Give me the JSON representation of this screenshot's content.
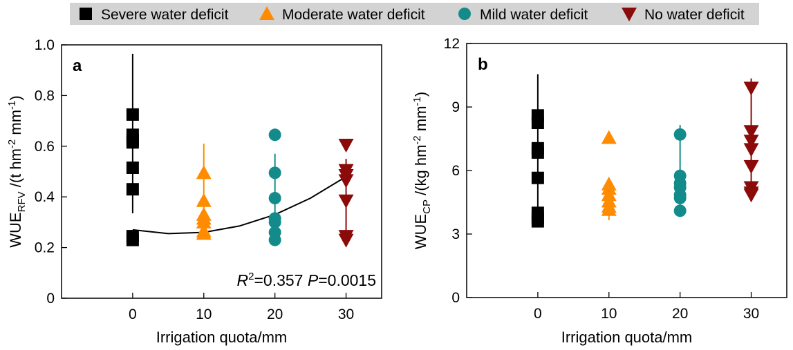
{
  "legend": {
    "items": [
      {
        "label": "Severe water deficit",
        "marker": "square",
        "color": "#000000"
      },
      {
        "label": "Moderate water deficit",
        "marker": "triangle-up",
        "color": "#ff8c00"
      },
      {
        "label": "Mild water deficit",
        "marker": "circle",
        "color": "#138b8b"
      },
      {
        "label": "No water deficit",
        "marker": "triangle-down",
        "color": "#8b0a0a"
      }
    ],
    "background": "#d3d3d3"
  },
  "chart_data": [
    {
      "type": "scatter",
      "panel_label": "a",
      "xlabel": "Irrigation quota/mm",
      "ylabel": {
        "main": "WUE",
        "sub": "RFV",
        "rest_before": " /(t hm",
        "sup1": "-2",
        "mid": " mm",
        "sup2": "-1",
        "rest_after": ")"
      },
      "xlim": [
        -10,
        35
      ],
      "ylim": [
        0,
        1.0
      ],
      "xticks": [
        0,
        10,
        20,
        30
      ],
      "yticks": [
        0,
        0.2,
        0.4,
        0.6,
        0.8,
        1.0
      ],
      "ytick_labels": [
        "0",
        "0.2",
        "0.4",
        "0.6",
        "0.8",
        "1.0"
      ],
      "annotation": {
        "r_label": "R",
        "r_sup": "2",
        "r_value": "=0.357 ",
        "p_label": "P",
        "p_value": "=0.0015"
      },
      "fit_curve": {
        "x": [
          0,
          5,
          10,
          15,
          20,
          25,
          30
        ],
        "y": [
          0.27,
          0.255,
          0.26,
          0.285,
          0.33,
          0.395,
          0.48
        ]
      },
      "series": [
        {
          "name": "Severe water deficit",
          "x": 0,
          "y": [
            0.725,
            0.645,
            0.625,
            0.615,
            0.515,
            0.43,
            0.245,
            0.23
          ],
          "err_low": 0.335,
          "err_high": 0.965
        },
        {
          "name": "Moderate water deficit",
          "x": 10,
          "y": [
            0.495,
            0.385,
            0.33,
            0.315,
            0.3,
            0.265,
            0.255
          ],
          "err_low": 0.245,
          "err_high": 0.61
        },
        {
          "name": "Mild water deficit",
          "x": 20,
          "y": [
            0.645,
            0.495,
            0.395,
            0.315,
            0.3,
            0.26,
            0.23
          ],
          "err_low": 0.22,
          "err_high": 0.57
        },
        {
          "name": "No water deficit",
          "x": 30,
          "y": [
            0.605,
            0.505,
            0.485,
            0.465,
            0.385,
            0.245,
            0.23
          ],
          "err_low": 0.22,
          "err_high": 0.55
        }
      ]
    },
    {
      "type": "scatter",
      "panel_label": "b",
      "xlabel": "Irrigation quota/mm",
      "ylabel": {
        "main": "WUE",
        "sub": "CP",
        "rest_before": " /(kg hm",
        "sup1": "-2",
        "mid": " mm",
        "sup2": "-1",
        "rest_after": ")"
      },
      "xlim": [
        -10,
        35
      ],
      "ylim": [
        0,
        12
      ],
      "xticks": [
        0,
        10,
        20,
        30
      ],
      "yticks": [
        0,
        3,
        6,
        9,
        12
      ],
      "ytick_labels": [
        "0",
        "3",
        "6",
        "9",
        "12"
      ],
      "series": [
        {
          "name": "Severe water deficit",
          "x": 0,
          "y": [
            8.6,
            8.25,
            7.05,
            6.85,
            5.65,
            4.0,
            3.75,
            3.6
          ],
          "err_low": 3.4,
          "err_high": 10.55
        },
        {
          "name": "Moderate water deficit",
          "x": 10,
          "y": [
            7.55,
            5.35,
            5.15,
            4.85,
            4.55,
            4.3,
            4.15
          ],
          "err_low": 3.65,
          "err_high": 5.5
        },
        {
          "name": "Mild water deficit",
          "x": 20,
          "y": [
            7.7,
            5.75,
            5.4,
            5.2,
            4.85,
            4.7,
            4.1
          ],
          "err_low": 3.95,
          "err_high": 8.15
        },
        {
          "name": "No water deficit",
          "x": 30,
          "y": [
            9.9,
            7.85,
            7.4,
            7.0,
            6.2,
            5.2,
            4.95,
            4.85
          ],
          "err_low": 4.55,
          "err_high": 10.35
        }
      ]
    }
  ]
}
